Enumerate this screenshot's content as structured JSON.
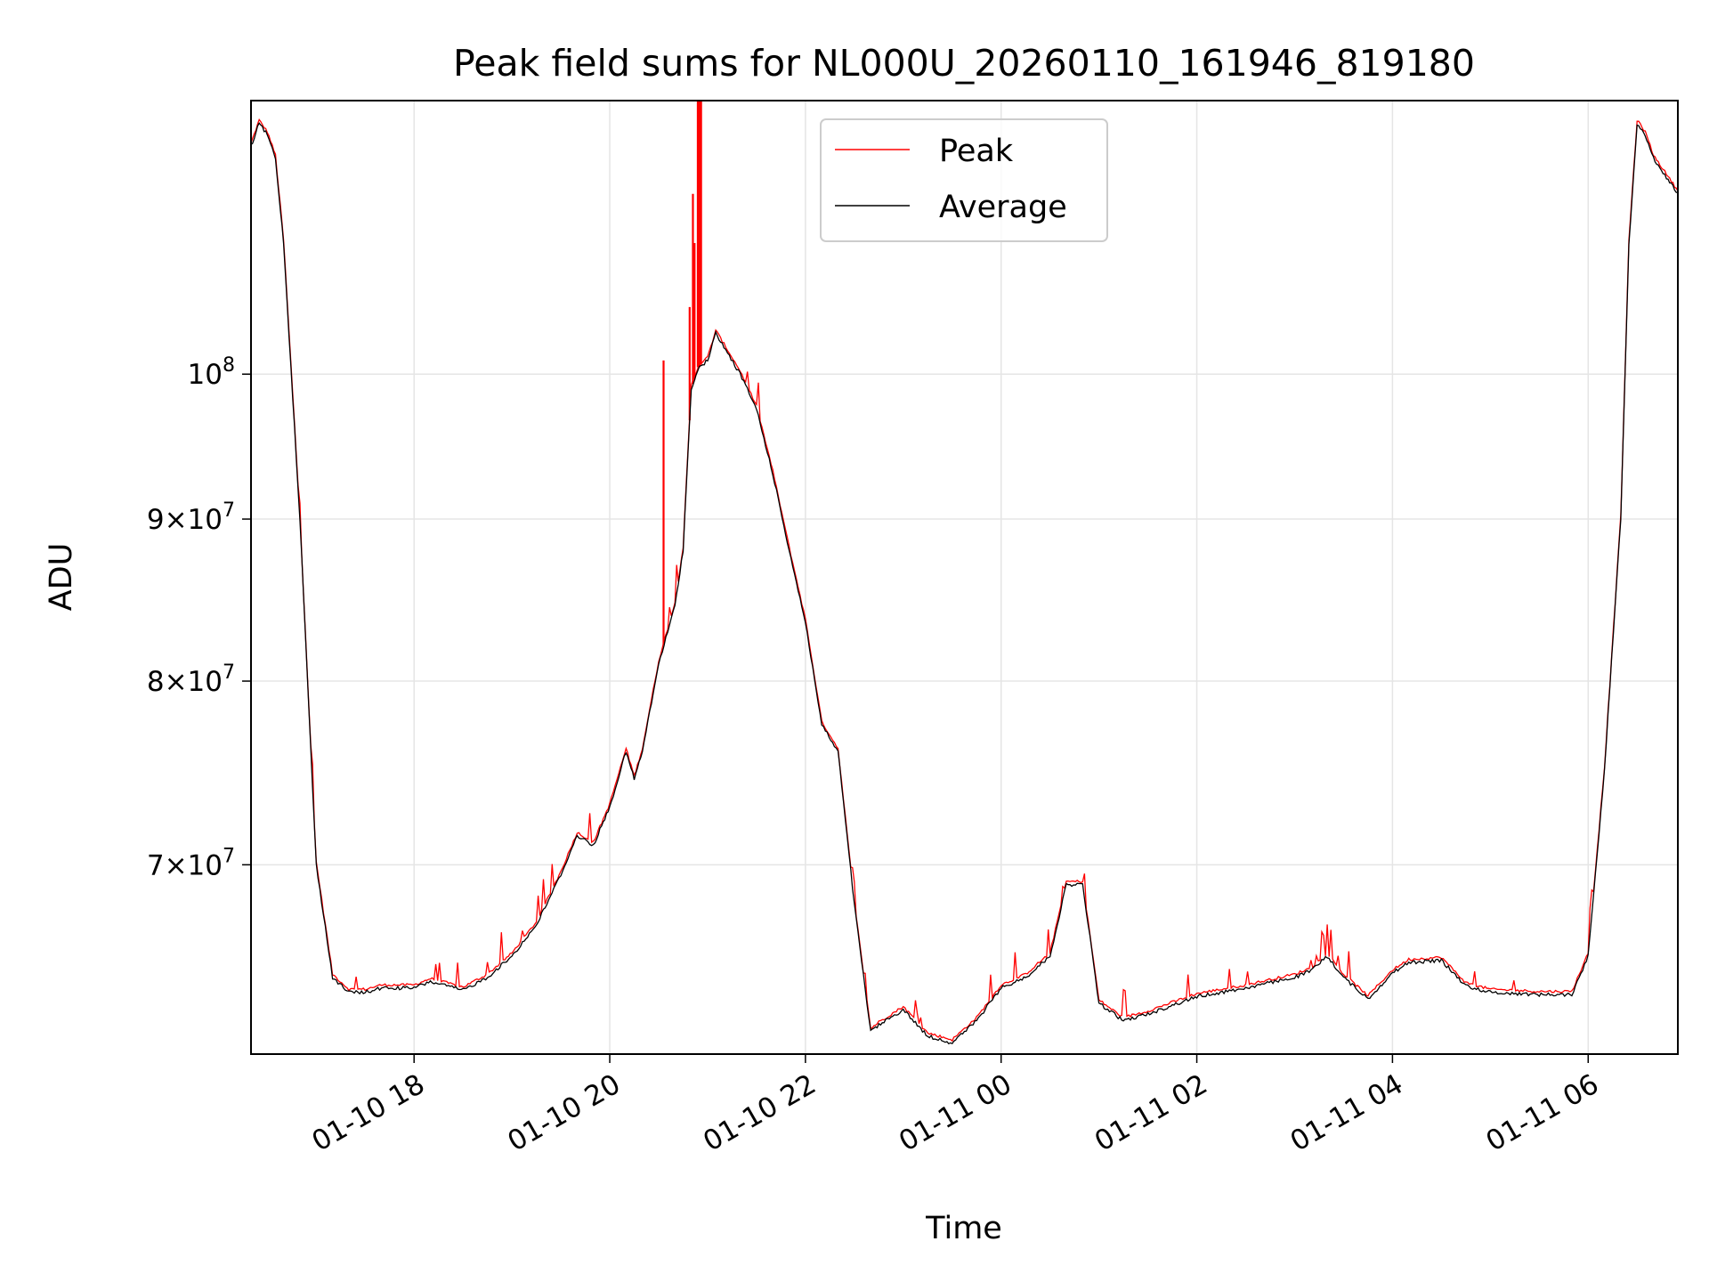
{
  "chart_data": {
    "type": "line",
    "title": "Peak field sums for NL000U_20260110_161946_819180",
    "xlabel": "Time",
    "ylabel": "ADU",
    "y_scale": "log",
    "grid": true,
    "legend_position": "top-center",
    "xlim": [
      "2026-01-10 16:20",
      "2026-01-11 06:55"
    ],
    "ylim": [
      61000000,
      122000000
    ],
    "x_ticks": [
      {
        "value": "2026-01-10 18:00",
        "label": "01-10 18"
      },
      {
        "value": "2026-01-10 20:00",
        "label": "01-10 20"
      },
      {
        "value": "2026-01-10 22:00",
        "label": "01-10 22"
      },
      {
        "value": "2026-01-11 00:00",
        "label": "01-11 00"
      },
      {
        "value": "2026-01-11 02:00",
        "label": "01-11 02"
      },
      {
        "value": "2026-01-11 04:00",
        "label": "01-11 04"
      },
      {
        "value": "2026-01-11 06:00",
        "label": "01-11 06"
      }
    ],
    "y_ticks": [
      {
        "value": 70000000,
        "label_mantissa": "7",
        "label_exp": "7"
      },
      {
        "value": 80000000,
        "label_mantissa": "8",
        "label_exp": "7"
      },
      {
        "value": 90000000,
        "label_mantissa": "9",
        "label_exp": "7"
      },
      {
        "value": 100000000,
        "label_mantissa": "",
        "label_exp": "8"
      }
    ],
    "series": [
      {
        "name": "Average",
        "color": "#000000",
        "x": [
          "2026-01-10 16:20",
          "2026-01-10 16:25",
          "2026-01-10 16:30",
          "2026-01-10 16:35",
          "2026-01-10 16:40",
          "2026-01-10 16:50",
          "2026-01-10 17:00",
          "2026-01-10 17:10",
          "2026-01-10 17:20",
          "2026-01-10 17:30",
          "2026-01-10 17:40",
          "2026-01-10 18:00",
          "2026-01-10 18:10",
          "2026-01-10 18:30",
          "2026-01-10 18:45",
          "2026-01-10 19:00",
          "2026-01-10 19:15",
          "2026-01-10 19:30",
          "2026-01-10 19:40",
          "2026-01-10 19:50",
          "2026-01-10 19:55",
          "2026-01-10 20:00",
          "2026-01-10 20:10",
          "2026-01-10 20:15",
          "2026-01-10 20:20",
          "2026-01-10 20:30",
          "2026-01-10 20:40",
          "2026-01-10 20:45",
          "2026-01-10 20:50",
          "2026-01-10 20:55",
          "2026-01-10 21:00",
          "2026-01-10 21:05",
          "2026-01-10 21:10",
          "2026-01-10 21:20",
          "2026-01-10 21:30",
          "2026-01-10 21:40",
          "2026-01-10 21:50",
          "2026-01-10 22:00",
          "2026-01-10 22:10",
          "2026-01-10 22:20",
          "2026-01-10 22:30",
          "2026-01-10 22:40",
          "2026-01-10 22:45",
          "2026-01-10 23:00",
          "2026-01-10 23:15",
          "2026-01-10 23:30",
          "2026-01-10 23:45",
          "2026-01-11 00:00",
          "2026-01-11 00:15",
          "2026-01-11 00:30",
          "2026-01-11 00:40",
          "2026-01-11 00:50",
          "2026-01-11 01:00",
          "2026-01-11 01:15",
          "2026-01-11 01:30",
          "2026-01-11 01:45",
          "2026-01-11 02:00",
          "2026-01-11 02:30",
          "2026-01-11 03:00",
          "2026-01-11 03:10",
          "2026-01-11 03:20",
          "2026-01-11 03:30",
          "2026-01-11 03:45",
          "2026-01-11 04:00",
          "2026-01-11 04:10",
          "2026-01-11 04:30",
          "2026-01-11 04:45",
          "2026-01-11 05:00",
          "2026-01-11 05:30",
          "2026-01-11 05:50",
          "2026-01-11 06:00",
          "2026-01-11 06:10",
          "2026-01-11 06:20",
          "2026-01-11 06:25",
          "2026-01-11 06:30",
          "2026-01-11 06:35",
          "2026-01-11 06:40",
          "2026-01-11 06:45",
          "2026-01-11 06:50",
          "2026-01-11 06:55"
        ],
        "values": [
          118000000,
          120000000,
          119000000,
          117000000,
          110000000,
          90000000,
          70000000,
          64500000,
          63800000,
          63800000,
          64000000,
          64000000,
          64300000,
          63900000,
          64500000,
          65500000,
          67000000,
          69500000,
          71500000,
          71000000,
          72000000,
          73000000,
          76000000,
          74500000,
          76000000,
          81000000,
          84500000,
          88000000,
          99000000,
          100500000,
          101000000,
          103000000,
          102000000,
          100000000,
          97500000,
          93000000,
          88000000,
          83500000,
          77500000,
          76000000,
          68000000,
          62000000,
          62300000,
          63000000,
          61800000,
          61500000,
          62500000,
          64000000,
          64500000,
          65500000,
          69000000,
          69000000,
          63300000,
          62500000,
          62800000,
          63200000,
          63600000,
          64000000,
          64500000,
          64800000,
          65500000,
          64500000,
          63500000,
          64700000,
          65200000,
          65300000,
          64100000,
          63800000,
          63700000,
          63700000,
          65500000,
          75000000,
          90000000,
          110000000,
          120000000,
          119000000,
          117000000,
          116000000,
          115000000,
          114000000
        ]
      },
      {
        "name": "Peak",
        "color": "#ff0000",
        "spikes": [
          {
            "x": "2026-01-10 20:33",
            "value": 101000000
          },
          {
            "x": "2026-01-10 20:49",
            "value": 105000000
          },
          {
            "x": "2026-01-10 20:51",
            "value": 114000000
          },
          {
            "x": "2026-01-10 20:52",
            "value": 110000000
          },
          {
            "x": "2026-01-10 20:54",
            "value": 122000000
          },
          {
            "x": "2026-01-10 20:55",
            "value": 122000000
          },
          {
            "x": "2026-01-10 20:56",
            "value": 122000000
          }
        ]
      }
    ]
  }
}
